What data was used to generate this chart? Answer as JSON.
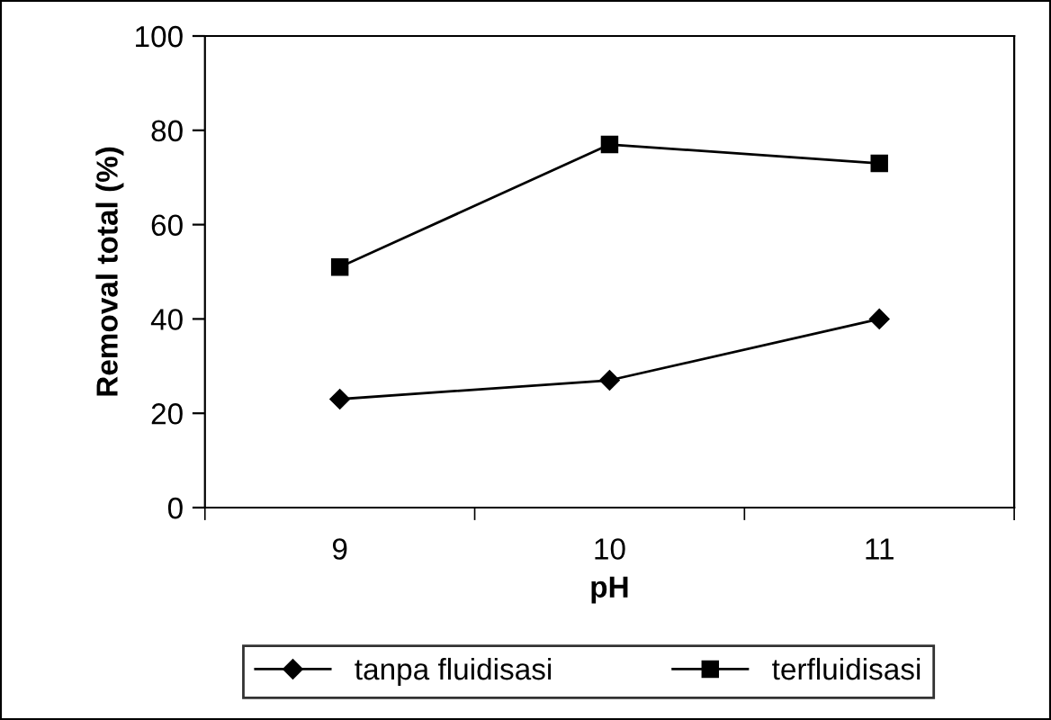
{
  "chart_data": {
    "type": "line",
    "xlabel": "pH",
    "ylabel": "Removal total (%)",
    "categories": [
      "9",
      "10",
      "11"
    ],
    "series": [
      {
        "name": "tanpa fluidisasi",
        "color": "#000000",
        "marker": "diamond",
        "values": [
          23,
          27,
          40
        ]
      },
      {
        "name": "terfluidisasi",
        "color": "#000000",
        "marker": "square",
        "values": [
          51,
          77,
          73
        ]
      }
    ],
    "ylim": [
      0,
      100
    ],
    "yticks": [
      0,
      20,
      40,
      60,
      80,
      100
    ],
    "grid": false,
    "legend": "bottom",
    "line_style": "solid"
  }
}
